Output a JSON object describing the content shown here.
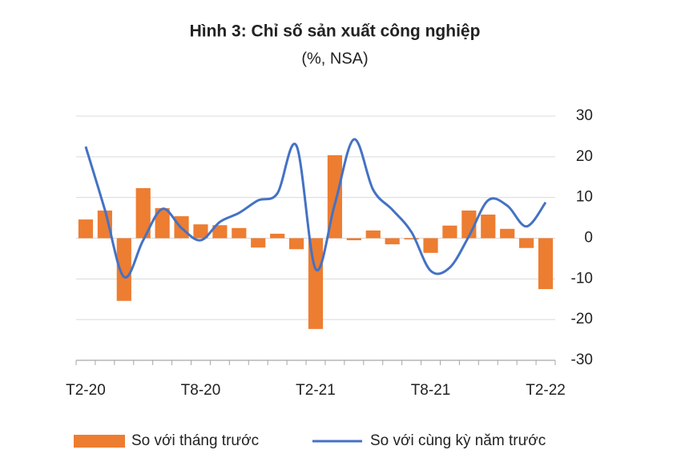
{
  "chart_data": {
    "type": "bar-line",
    "title": "Hình 3: Chỉ số sản xuất công nghiệp",
    "subtitle": "(%, NSA)",
    "categories": [
      "T2-20",
      null,
      null,
      null,
      null,
      null,
      "T8-20",
      null,
      null,
      null,
      null,
      null,
      "T2-21",
      null,
      null,
      null,
      null,
      null,
      "T8-21",
      null,
      null,
      null,
      null,
      null,
      "T2-22"
    ],
    "series": [
      {
        "name": "So với tháng trước",
        "type": "bar",
        "color": "#ed7d31",
        "values": [
          4.6,
          6.8,
          -15.4,
          12.3,
          7.4,
          5.4,
          3.4,
          3.2,
          2.5,
          -2.3,
          1.1,
          -2.7,
          -22.3,
          20.4,
          -0.5,
          1.9,
          -1.5,
          -0.3,
          -3.6,
          3.1,
          6.8,
          5.8,
          2.3,
          -2.4,
          -12.5
        ]
      },
      {
        "name": "So với cùng kỳ năm trước",
        "type": "line",
        "color": "#4472c4",
        "values": [
          22.5,
          7,
          -9.5,
          -0.5,
          7.2,
          2.5,
          -0.5,
          4,
          6.2,
          9.3,
          11,
          22.7,
          -7.6,
          8.4,
          24.3,
          11.9,
          7,
          1.5,
          -8,
          -7.2,
          0.5,
          9.3,
          8,
          2.9,
          8.8
        ]
      }
    ],
    "ylim": [
      -30,
      30
    ],
    "yticks": [
      -30,
      -20,
      -10,
      0,
      10,
      20,
      30
    ],
    "grid": true,
    "legend": "bottom"
  }
}
